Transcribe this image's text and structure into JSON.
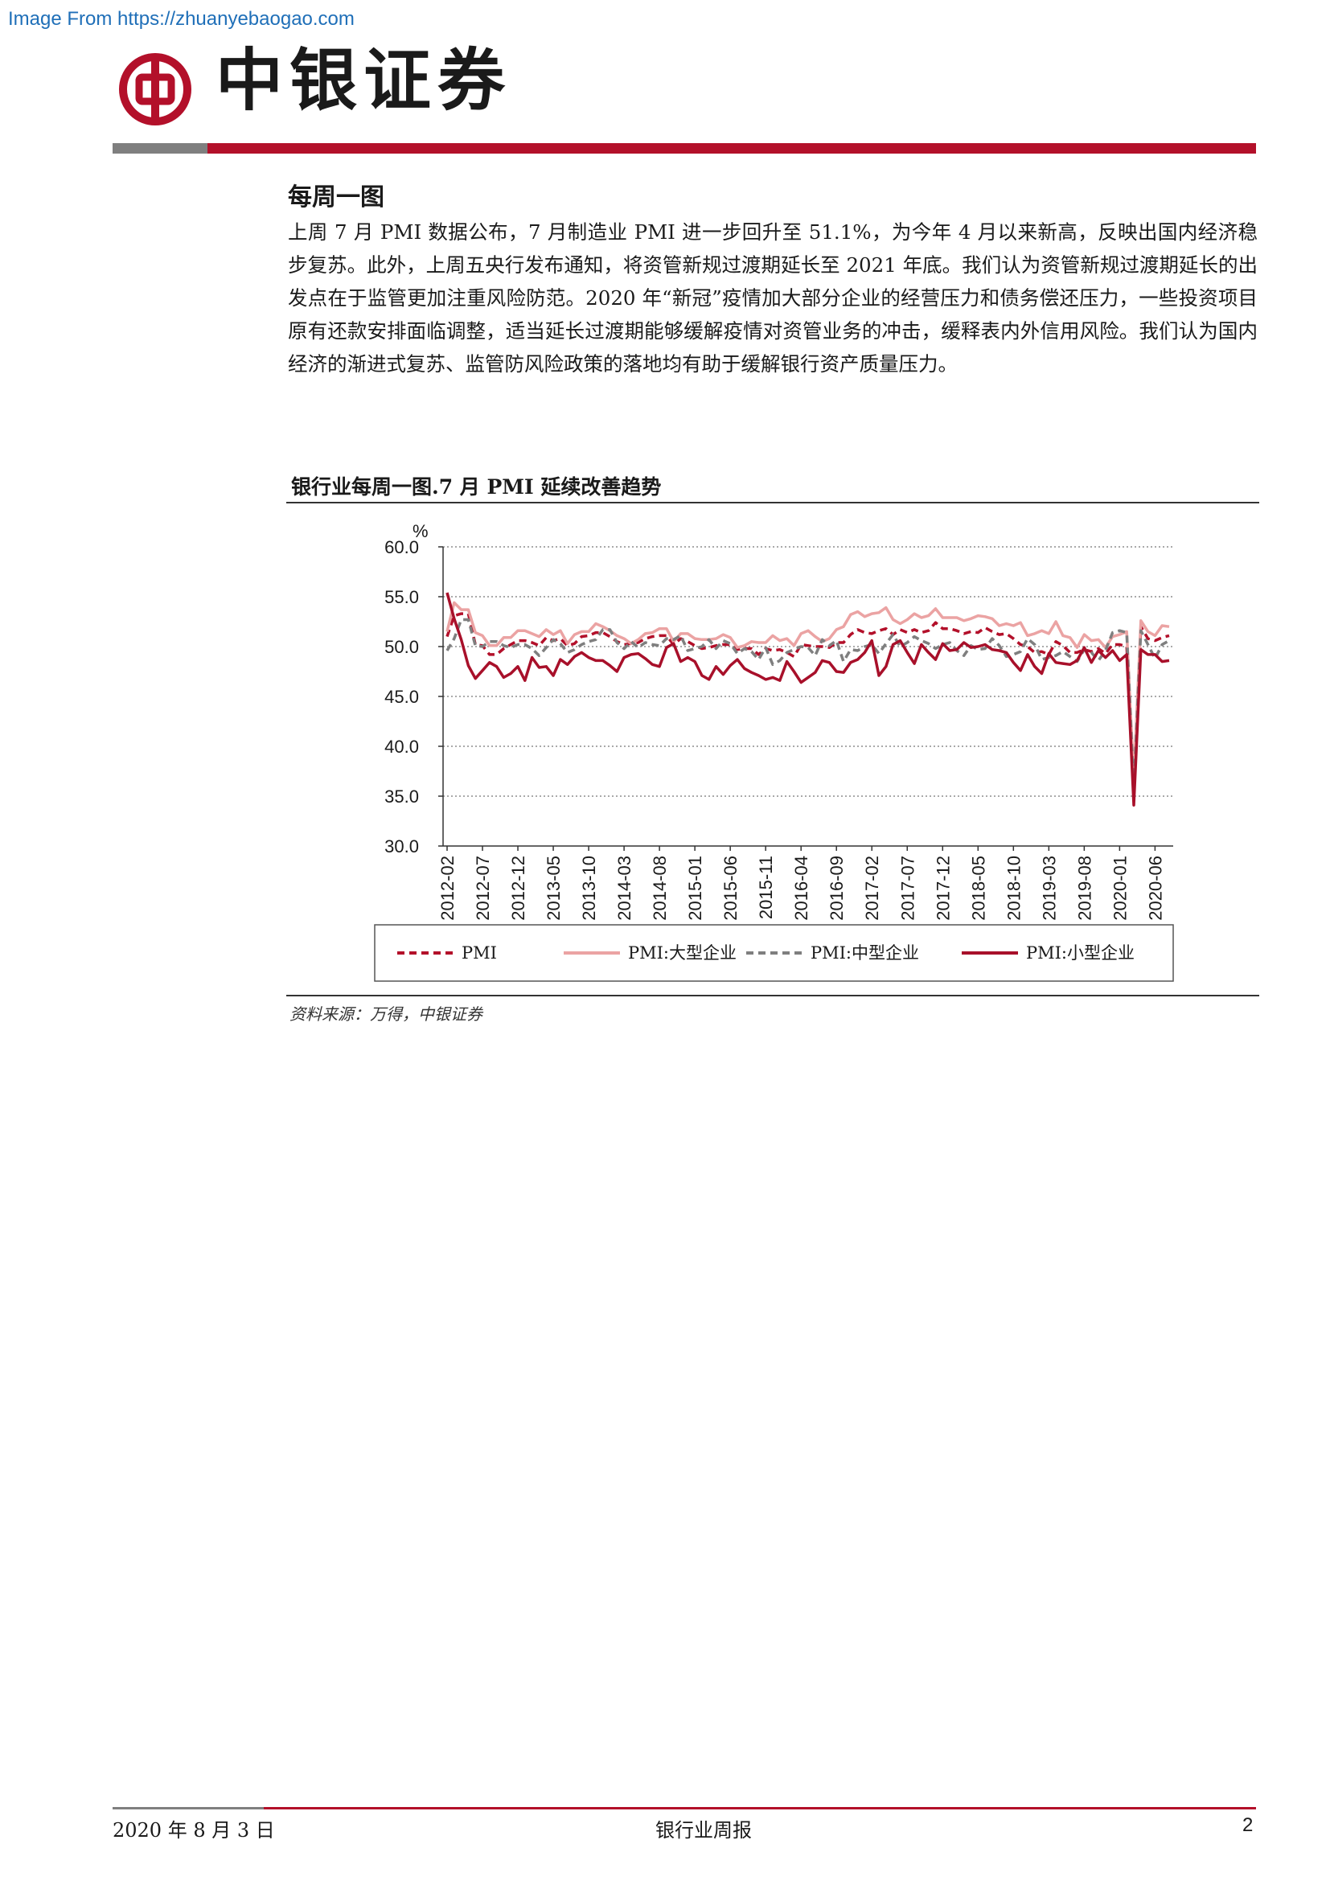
{
  "watermark": "Image From https://zhuanyebaogao.com",
  "header": {
    "brand": "中银证券",
    "colors": {
      "red": "#b3102a",
      "grey": "#7f7f7f"
    }
  },
  "section": {
    "title": "每周一图",
    "body": "上周 7 月 PMI 数据公布，7 月制造业 PMI 进一步回升至 51.1%，为今年 4 月以来新高，反映出国内经济稳步复苏。此外，上周五央行发布通知，将资管新规过渡期延长至 2021 年底。我们认为资管新规过渡期延长的出发点在于监管更加注重风险防范。2020 年“新冠”疫情加大部分企业的经营压力和债务偿还压力，一些投资项目原有还款安排面临调整，适当延长过渡期能够缓解疫情对资管业务的冲击，缓释表内外信用风险。我们认为国内经济的渐进式复苏、监管防风险政策的落地均有助于缓解银行资产质量压力。"
  },
  "chart_title": "银行业每周一图.7 月 PMI 延续改善趋势",
  "source_note": "资料来源：万得，中银证券",
  "footer": {
    "date": "2020 年 8 月 3 日",
    "report": "银行业周报",
    "page": "2"
  },
  "chart_data": {
    "type": "line",
    "unit_label": "%",
    "ylim": [
      30,
      60
    ],
    "yticks": [
      "60.0",
      "55.0",
      "50.0",
      "45.0",
      "40.0",
      "35.0",
      "30.0"
    ],
    "grid": "horizontal dotted",
    "legend_position": "bottom",
    "x_tick_labels": [
      "2012-02",
      "2012-07",
      "2012-12",
      "2013-05",
      "2013-10",
      "2014-03",
      "2014-08",
      "2015-01",
      "2015-06",
      "2015-11",
      "2016-04",
      "2016-09",
      "2017-02",
      "2017-07",
      "2017-12",
      "2018-05",
      "2018-10",
      "2019-03",
      "2019-08",
      "2020-01",
      "2020-06"
    ],
    "x_start": "2012-02",
    "x_end": "2020-07",
    "series": [
      {
        "name": "PMI",
        "color": "#b3102a",
        "style": "dashed",
        "values": [
          51.0,
          53.1,
          53.3,
          53.3,
          50.2,
          50.1,
          49.2,
          49.2,
          49.8,
          50.2,
          50.6,
          50.6,
          50.4,
          50.1,
          50.9,
          50.6,
          50.8,
          50.1,
          50.3,
          51.0,
          51.1,
          51.4,
          51.4,
          51.0,
          50.5,
          50.2,
          50.3,
          50.4,
          50.8,
          51.0,
          51.1,
          51.1,
          50.2,
          50.8,
          50.5,
          50.1,
          49.8,
          49.9,
          50.1,
          50.2,
          50.2,
          49.7,
          49.8,
          49.8,
          49.2,
          49.8,
          49.6,
          49.7,
          49.4,
          49.0,
          50.2,
          50.1,
          50.0,
          50.0,
          49.9,
          50.4,
          50.4,
          51.2,
          51.7,
          51.4,
          51.3,
          51.6,
          51.8,
          51.2,
          51.7,
          51.4,
          51.7,
          51.4,
          51.6,
          52.4,
          51.8,
          51.8,
          51.6,
          51.3,
          51.5,
          51.4,
          51.9,
          51.5,
          51.2,
          51.3,
          50.8,
          50.2,
          50.0,
          49.4,
          49.5,
          49.2,
          50.5,
          50.1,
          49.4,
          49.4,
          49.7,
          49.5,
          49.8,
          49.3,
          50.2,
          50.2,
          50.0,
          35.7,
          52.0,
          50.8,
          50.6,
          50.9,
          51.1
        ]
      },
      {
        "name": "PMI:大型企业",
        "color": "#eba3a3",
        "style": "solid",
        "values": [
          51.5,
          54.4,
          53.7,
          53.7,
          51.4,
          51.1,
          50.1,
          50.1,
          50.9,
          50.9,
          51.6,
          51.6,
          51.3,
          51.0,
          51.7,
          51.2,
          51.6,
          50.3,
          51.2,
          51.5,
          51.5,
          52.3,
          52.0,
          51.6,
          51.1,
          50.8,
          50.3,
          50.7,
          51.3,
          51.4,
          51.8,
          51.8,
          50.5,
          51.3,
          51.3,
          50.8,
          50.7,
          50.7,
          50.8,
          51.2,
          50.9,
          49.9,
          50.1,
          50.5,
          50.4,
          50.4,
          51.1,
          50.6,
          50.8,
          50.1,
          51.3,
          51.6,
          51.0,
          50.5,
          50.8,
          51.7,
          52.0,
          53.2,
          53.5,
          53.0,
          53.3,
          53.4,
          53.9,
          52.7,
          52.3,
          52.7,
          53.3,
          52.9,
          53.1,
          53.8,
          52.9,
          52.9,
          52.9,
          52.6,
          52.8,
          53.1,
          53.0,
          52.8,
          52.1,
          52.3,
          52.1,
          52.4,
          51.1,
          51.3,
          51.6,
          51.3,
          52.5,
          51.1,
          50.9,
          49.9,
          51.2,
          50.6,
          50.7,
          49.9,
          51.0,
          51.2,
          51.5,
          36.7,
          52.6,
          51.5,
          51.1,
          52.1,
          52.0
        ]
      },
      {
        "name": "PMI:中型企业",
        "color": "#7f7f7f",
        "style": "dashed",
        "values": [
          49.6,
          50.8,
          52.7,
          52.7,
          50.1,
          50.0,
          50.5,
          50.5,
          50.1,
          49.9,
          50.2,
          50.2,
          49.8,
          49.1,
          49.9,
          50.7,
          50.3,
          49.4,
          49.7,
          50.2,
          50.5,
          50.7,
          51.7,
          51.7,
          50.4,
          49.8,
          50.5,
          49.9,
          50.4,
          50.2,
          50.1,
          50.8,
          50.7,
          51.1,
          49.6,
          49.8,
          50.0,
          50.7,
          49.8,
          50.6,
          50.3,
          49.3,
          49.8,
          49.5,
          48.7,
          49.9,
          48.2,
          48.6,
          49.4,
          49.7,
          50.0,
          49.9,
          49.1,
          50.7,
          50.1,
          50.6,
          48.5,
          49.7,
          49.6,
          50.0,
          50.2,
          49.3,
          50.3,
          51.2,
          50.0,
          50.4,
          51.0,
          50.6,
          50.3,
          49.8,
          50.2,
          50.4,
          49.6,
          49.1,
          50.1,
          49.7,
          49.8,
          50.8,
          50.1,
          49.0,
          49.2,
          49.5,
          50.8,
          50.2,
          48.7,
          48.9,
          49.1,
          49.5,
          49.0,
          48.5,
          49.7,
          49.4,
          48.6,
          49.6,
          51.4,
          51.6,
          51.4,
          35.5,
          51.6,
          50.2,
          48.8,
          50.2,
          50.6
        ]
      },
      {
        "name": "PMI:小型企业",
        "color": "#a8102a",
        "style": "solid",
        "values": [
          55.4,
          52.8,
          50.7,
          48.1,
          46.8,
          47.6,
          48.4,
          48.0,
          46.9,
          47.3,
          48.0,
          46.6,
          48.9,
          47.9,
          48.0,
          47.1,
          48.7,
          48.2,
          49.0,
          49.4,
          48.9,
          48.6,
          48.6,
          48.1,
          47.5,
          48.9,
          49.2,
          49.3,
          48.8,
          48.2,
          48.0,
          49.9,
          50.3,
          48.5,
          48.9,
          48.5,
          47.1,
          46.7,
          48.0,
          47.2,
          48.1,
          48.7,
          47.8,
          47.4,
          47.1,
          46.7,
          46.9,
          46.6,
          48.5,
          47.5,
          46.4,
          46.9,
          47.4,
          48.6,
          48.4,
          47.5,
          47.4,
          48.4,
          48.7,
          49.4,
          50.6,
          47.1,
          48.0,
          50.2,
          50.6,
          49.4,
          48.3,
          50.2,
          49.4,
          48.7,
          50.3,
          49.6,
          49.7,
          50.4,
          49.9,
          50.0,
          50.2,
          49.7,
          49.6,
          49.4,
          48.4,
          47.6,
          49.2,
          48.0,
          47.3,
          49.3,
          48.4,
          48.3,
          48.2,
          48.6,
          49.9,
          48.4,
          49.6,
          48.9,
          49.6,
          48.6,
          49.2,
          34.1,
          49.7,
          49.2,
          49.2,
          48.5,
          48.6
        ]
      }
    ]
  }
}
